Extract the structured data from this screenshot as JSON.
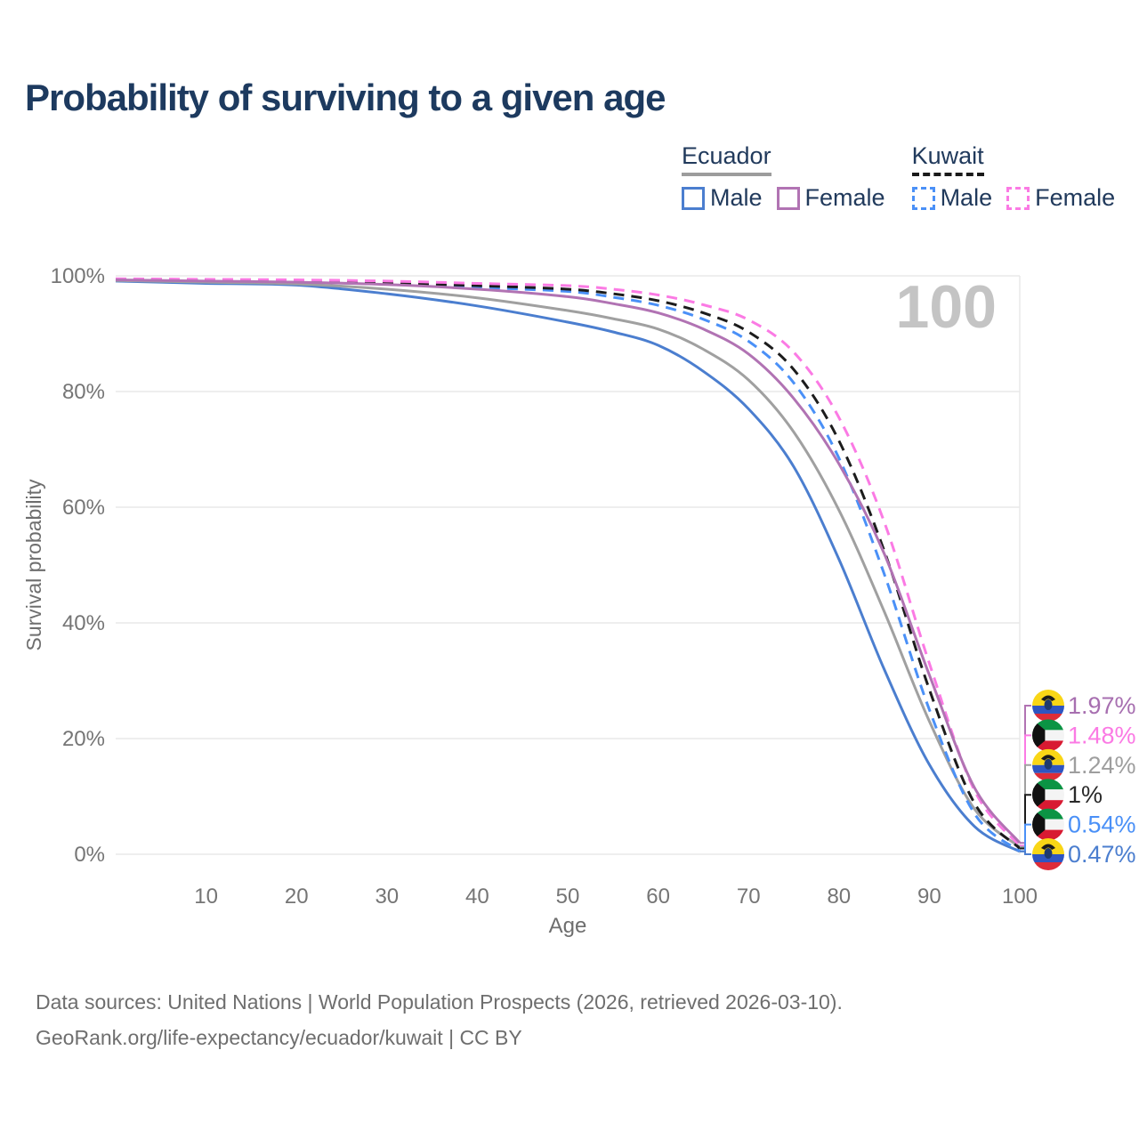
{
  "title": "Probability of surviving to a given age",
  "colors": {
    "title": "#1d3a5f",
    "axis_text": "#757575",
    "axis_label": "#6e6e6e",
    "gridline": "#e9e9e9",
    "watermark": "#c4c4c4",
    "footer_text": "#6e6e6e",
    "legend_text": "#213a5c"
  },
  "legend": {
    "groups": [
      {
        "label": "Ecuador",
        "line_style": "solid",
        "underline_color": "#9c9c9c",
        "items": [
          {
            "label": "Male",
            "color": "#4b7ecf"
          },
          {
            "label": "Female",
            "color": "#b173b3"
          }
        ]
      },
      {
        "label": "Kuwait",
        "line_style": "dashed",
        "underline_color": "#1a1a1a",
        "items": [
          {
            "label": "Male",
            "color": "#4a90f7"
          },
          {
            "label": "Female",
            "color": "#fb7ae4"
          }
        ]
      }
    ]
  },
  "chart_data": {
    "type": "line",
    "title": "Probability of surviving to a given age",
    "xlabel": "Age",
    "ylabel": "Survival probability",
    "xlim": [
      0,
      100
    ],
    "ylim": [
      0,
      100
    ],
    "x_ticks": [
      10,
      20,
      30,
      40,
      50,
      60,
      70,
      80,
      90,
      100
    ],
    "y_ticks": [
      0,
      20,
      40,
      60,
      80,
      100
    ],
    "y_tick_suffix": "%",
    "grid": "horizontal gridlines at each y tick, one vertical gridline at age 100",
    "legend_position": "top-right",
    "watermark": "100",
    "x": [
      0,
      10,
      20,
      30,
      40,
      50,
      55,
      60,
      65,
      70,
      75,
      80,
      85,
      90,
      95,
      100
    ],
    "series": [
      {
        "name": "Ecuador Male",
        "country": "Ecuador",
        "sex": "Male",
        "flag": "ecuador",
        "color": "#4b7ecf",
        "dashed": false,
        "end_label": "0.47%",
        "end_value": 0.47,
        "values": [
          99.1,
          98.7,
          98.4,
          96.9,
          94.8,
          92.0,
          90.3,
          88.0,
          83.5,
          77.0,
          67.0,
          51.0,
          32.0,
          15.5,
          4.8,
          0.47
        ]
      },
      {
        "name": "Ecuador (both sexes)",
        "country": "Ecuador",
        "sex": "All",
        "flag": "ecuador",
        "color": "#a0a0a0",
        "dashed": false,
        "end_label": "1.24%",
        "end_value": 1.24,
        "end_label_color": "#9e9e9e",
        "values": [
          99.2,
          98.9,
          98.6,
          97.7,
          96.2,
          94.0,
          92.6,
          90.8,
          87.3,
          82.0,
          73.0,
          59.5,
          42.0,
          23.0,
          7.8,
          1.24
        ]
      },
      {
        "name": "Kuwait Male",
        "country": "Kuwait",
        "sex": "Male",
        "flag": "kuwait",
        "color": "#4a90f7",
        "dashed": true,
        "end_label": "0.54%",
        "end_value": 0.54,
        "values": [
          99.3,
          99.2,
          99.0,
          98.6,
          98.0,
          97.3,
          96.3,
          94.9,
          92.5,
          88.7,
          81.5,
          68.5,
          48.5,
          25.0,
          7.0,
          0.54
        ]
      },
      {
        "name": "Kuwait (both sexes)",
        "country": "Kuwait",
        "sex": "All",
        "flag": "kuwait",
        "color": "#1c1c1c",
        "dashed": true,
        "end_label": "1%",
        "end_value": 1.0,
        "end_label_color": "#2a2a2a",
        "values": [
          99.4,
          99.3,
          99.1,
          98.8,
          98.3,
          97.7,
          96.9,
          95.7,
          93.6,
          90.3,
          83.8,
          71.5,
          52.5,
          28.5,
          8.8,
          1.0
        ]
      },
      {
        "name": "Kuwait Female",
        "country": "Kuwait",
        "sex": "Female",
        "flag": "kuwait",
        "color": "#fb7ae4",
        "dashed": true,
        "end_label": "1.48%",
        "end_value": 1.48,
        "values": [
          99.5,
          99.4,
          99.3,
          99.1,
          98.7,
          98.3,
          97.7,
          96.7,
          95.0,
          92.4,
          86.8,
          75.5,
          57.5,
          33.0,
          11.0,
          1.48
        ]
      },
      {
        "name": "Ecuador Female",
        "country": "Ecuador",
        "sex": "Female",
        "flag": "ecuador",
        "color": "#b173b3",
        "dashed": false,
        "end_label": "1.97%",
        "end_value": 1.97,
        "end_label_color": "#a76fb0",
        "values": [
          99.3,
          99.1,
          98.9,
          98.5,
          97.7,
          96.4,
          95.2,
          93.6,
          90.8,
          86.5,
          78.8,
          67.5,
          52.0,
          31.0,
          11.5,
          1.97
        ]
      }
    ]
  },
  "footer": {
    "line1": "Data sources: United Nations | World Population Prospects (2026, retrieved 2026-03-10).",
    "line2": "GeoRank.org/life-expectancy/ecuador/kuwait | CC BY"
  }
}
